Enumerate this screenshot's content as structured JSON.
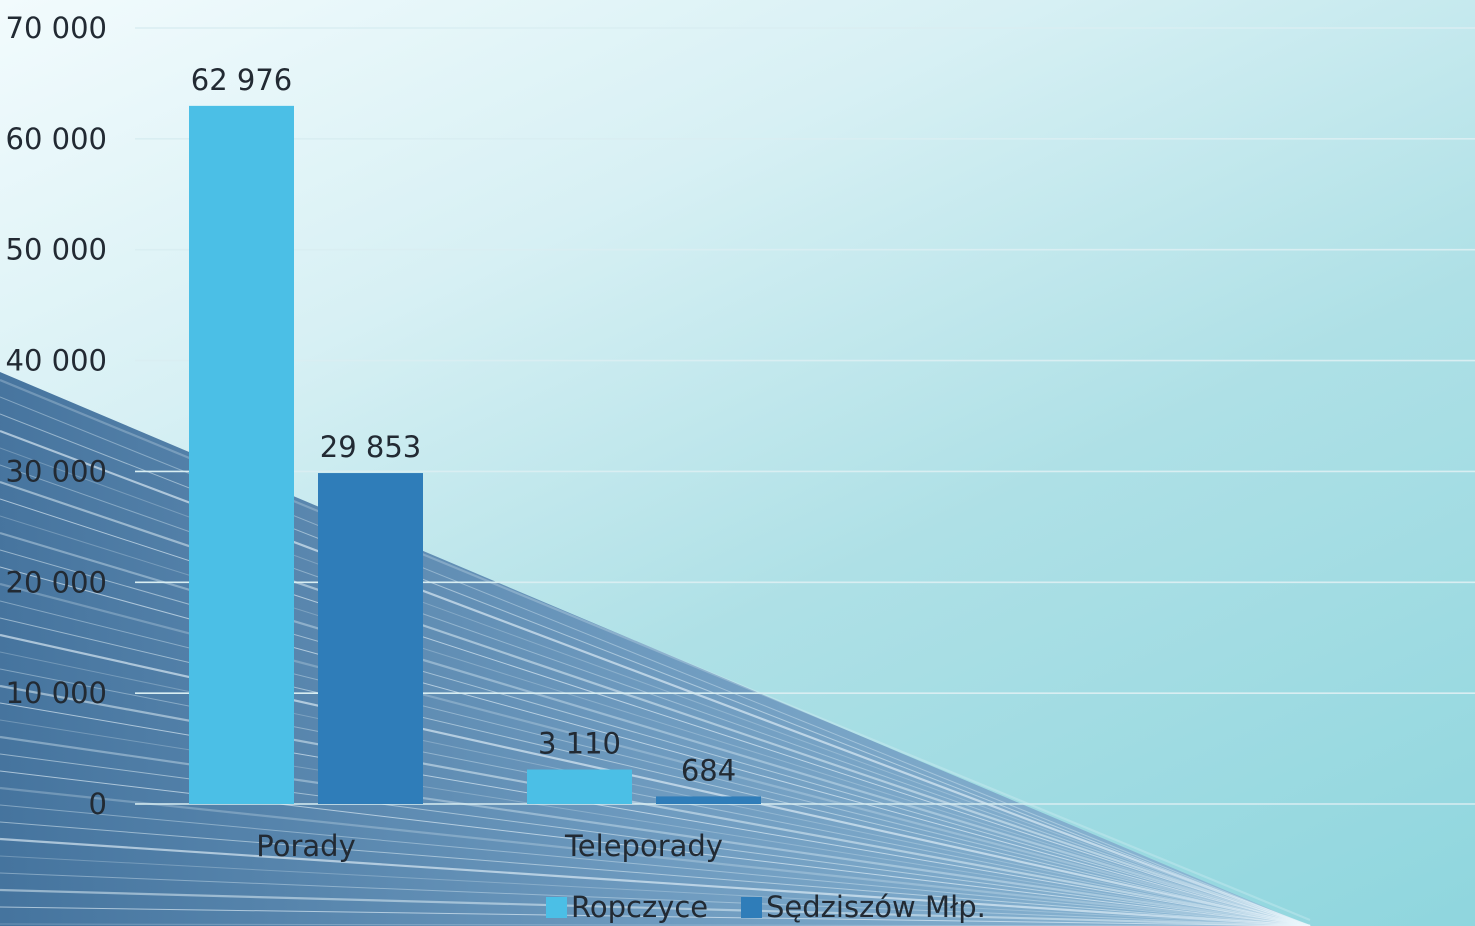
{
  "colors": {
    "ropczyce": "#4bbfe6",
    "sedziszow": "#2f7db9",
    "grid": "#d9eef2",
    "text": "#222a33"
  },
  "chart_data": {
    "type": "bar",
    "categories": [
      "Porady",
      "Teleporady"
    ],
    "series": [
      {
        "name": "Ropczyce",
        "values": [
          62976,
          3110
        ],
        "labels": [
          "62 976",
          "3 110"
        ]
      },
      {
        "name": "Sędziszów Młp.",
        "values": [
          29853,
          684
        ],
        "labels": [
          "29 853",
          "684"
        ]
      }
    ],
    "ylim": [
      0,
      70000
    ],
    "yticks": [
      0,
      10000,
      20000,
      30000,
      40000,
      50000,
      60000,
      70000
    ],
    "ytick_labels": [
      "0",
      "10 000",
      "20 000",
      "30 000",
      "40 000",
      "50 000",
      "60 000",
      "70 000"
    ],
    "grid": true,
    "legend": "bottom"
  }
}
